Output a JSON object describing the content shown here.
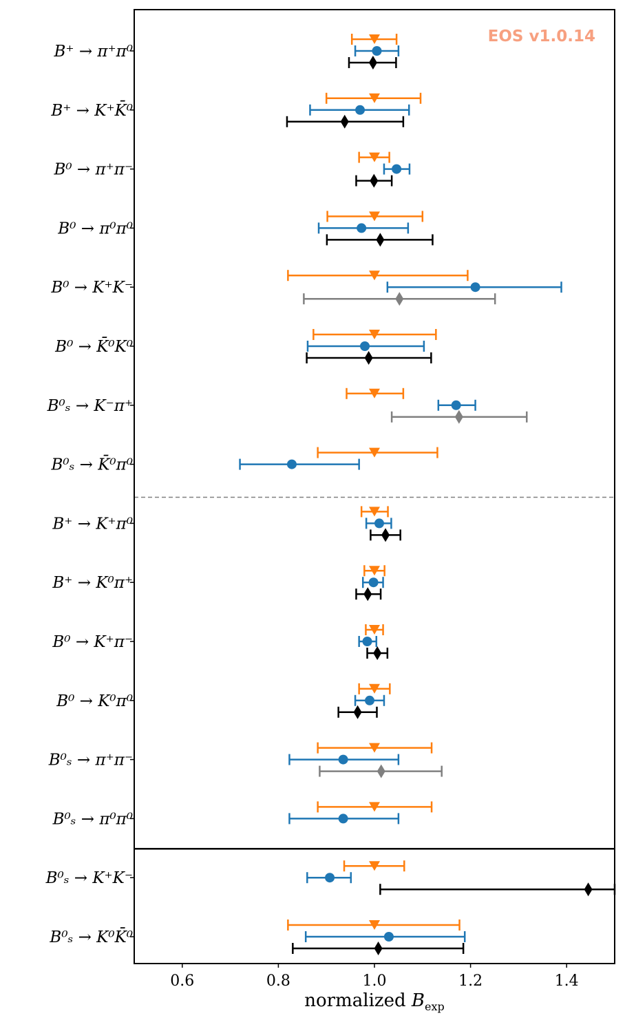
{
  "chart_data": {
    "type": "scatter",
    "watermark": "EOS v1.0.14",
    "xlabel_main": "normalized ",
    "xlabel_symbol": "B",
    "xlabel_sub": "exp",
    "xlim": [
      0.5,
      1.5
    ],
    "xticks": [
      0.6,
      0.8,
      1.0,
      1.2,
      1.4
    ],
    "xtick_labels": [
      "0.6",
      "0.8",
      "1.0",
      "1.2",
      "1.4"
    ],
    "colors": {
      "orange": "#ff7f0e",
      "blue": "#1f77b4",
      "black": "#000000",
      "gray": "#808080",
      "watermark": "#f7a080",
      "divider": "#808080"
    },
    "rows": [
      {
        "label": "B⁺ → π⁺π⁰",
        "orange": {
          "x": 1.0,
          "lo": 0.953,
          "hi": 1.046
        },
        "blue": {
          "x": 1.005,
          "lo": 0.96,
          "hi": 1.05
        },
        "exp": {
          "x": 0.997,
          "lo": 0.947,
          "hi": 1.045,
          "style": "black"
        }
      },
      {
        "label": "B⁺ → K⁺K̄⁰",
        "orange": {
          "x": 1.0,
          "lo": 0.9,
          "hi": 1.096
        },
        "blue": {
          "x": 0.97,
          "lo": 0.866,
          "hi": 1.072
        },
        "exp": {
          "x": 0.938,
          "lo": 0.818,
          "hi": 1.06,
          "style": "black"
        }
      },
      {
        "label": "B⁰ → π⁺π⁻",
        "orange": {
          "x": 1.0,
          "lo": 0.968,
          "hi": 1.031
        },
        "blue": {
          "x": 1.046,
          "lo": 1.02,
          "hi": 1.073
        },
        "exp": {
          "x": 0.999,
          "lo": 0.962,
          "hi": 1.036,
          "style": "black"
        }
      },
      {
        "label": "B⁰ → π⁰π⁰",
        "orange": {
          "x": 1.0,
          "lo": 0.902,
          "hi": 1.1
        },
        "blue": {
          "x": 0.973,
          "lo": 0.884,
          "hi": 1.07
        },
        "exp": {
          "x": 1.012,
          "lo": 0.901,
          "hi": 1.121,
          "style": "black"
        }
      },
      {
        "label": "B⁰ → K⁺K⁻",
        "orange": {
          "x": 1.0,
          "lo": 0.82,
          "hi": 1.194
        },
        "blue": {
          "x": 1.21,
          "lo": 1.027,
          "hi": 1.389
        },
        "exp": {
          "x": 1.052,
          "lo": 0.853,
          "hi": 1.251,
          "style": "gray"
        }
      },
      {
        "label": "B⁰ → K̄⁰K⁰",
        "orange": {
          "x": 1.0,
          "lo": 0.873,
          "hi": 1.128
        },
        "blue": {
          "x": 0.98,
          "lo": 0.861,
          "hi": 1.103
        },
        "exp": {
          "x": 0.988,
          "lo": 0.859,
          "hi": 1.118,
          "style": "black"
        }
      },
      {
        "label": "B⁰ₛ → K⁻π⁺",
        "orange": {
          "x": 1.0,
          "lo": 0.942,
          "hi": 1.06
        },
        "blue": {
          "x": 1.17,
          "lo": 1.133,
          "hi": 1.21
        },
        "exp": {
          "x": 1.176,
          "lo": 1.036,
          "hi": 1.317,
          "style": "gray"
        }
      },
      {
        "label": "B⁰ₛ → K̄⁰π⁰",
        "orange": {
          "x": 1.0,
          "lo": 0.882,
          "hi": 1.131
        },
        "blue": {
          "x": 0.828,
          "lo": 0.72,
          "hi": 0.968
        },
        "exp": null
      },
      {
        "label": "B⁺ → K⁺π⁰",
        "orange": {
          "x": 1.0,
          "lo": 0.973,
          "hi": 1.028
        },
        "blue": {
          "x": 1.01,
          "lo": 0.983,
          "hi": 1.035
        },
        "exp": {
          "x": 1.023,
          "lo": 0.992,
          "hi": 1.054,
          "style": "black"
        }
      },
      {
        "label": "B⁺ → K⁰π⁺",
        "orange": {
          "x": 1.0,
          "lo": 0.979,
          "hi": 1.021
        },
        "blue": {
          "x": 0.998,
          "lo": 0.976,
          "hi": 1.018
        },
        "exp": {
          "x": 0.986,
          "lo": 0.962,
          "hi": 1.013,
          "style": "black"
        }
      },
      {
        "label": "B⁰ → K⁺π⁻",
        "orange": {
          "x": 1.0,
          "lo": 0.982,
          "hi": 1.018
        },
        "blue": {
          "x": 0.985,
          "lo": 0.968,
          "hi": 1.004
        },
        "exp": {
          "x": 1.006,
          "lo": 0.985,
          "hi": 1.027,
          "style": "black"
        }
      },
      {
        "label": "B⁰ → K⁰π⁰",
        "orange": {
          "x": 1.0,
          "lo": 0.968,
          "hi": 1.032
        },
        "blue": {
          "x": 0.99,
          "lo": 0.96,
          "hi": 1.02
        },
        "exp": {
          "x": 0.965,
          "lo": 0.925,
          "hi": 1.005,
          "style": "black"
        }
      },
      {
        "label": "B⁰ₛ → π⁺π⁻",
        "orange": {
          "x": 1.0,
          "lo": 0.882,
          "hi": 1.119
        },
        "blue": {
          "x": 0.935,
          "lo": 0.823,
          "hi": 1.05
        },
        "exp": {
          "x": 1.014,
          "lo": 0.886,
          "hi": 1.14,
          "style": "gray"
        }
      },
      {
        "label": "B⁰ₛ → π⁰π⁰",
        "orange": {
          "x": 1.0,
          "lo": 0.882,
          "hi": 1.119
        },
        "blue": {
          "x": 0.935,
          "lo": 0.823,
          "hi": 1.05
        },
        "exp": null
      },
      {
        "label": "B⁰ₛ → K⁺K⁻",
        "orange": {
          "x": 1.0,
          "lo": 0.937,
          "hi": 1.062
        },
        "blue": {
          "x": 0.907,
          "lo": 0.86,
          "hi": 0.951
        },
        "exp": {
          "x": 1.445,
          "lo": 1.012,
          "hi": 1.5,
          "style": "black"
        }
      },
      {
        "label": "B⁰ₛ → K⁰K̄⁰",
        "orange": {
          "x": 1.0,
          "lo": 0.82,
          "hi": 1.177
        },
        "blue": {
          "x": 1.03,
          "lo": 0.857,
          "hi": 1.188
        },
        "exp": {
          "x": 1.008,
          "lo": 0.83,
          "hi": 1.185,
          "style": "black"
        }
      }
    ],
    "dashed_divider_after_row": 7,
    "solid_divider_after_row": 13
  }
}
